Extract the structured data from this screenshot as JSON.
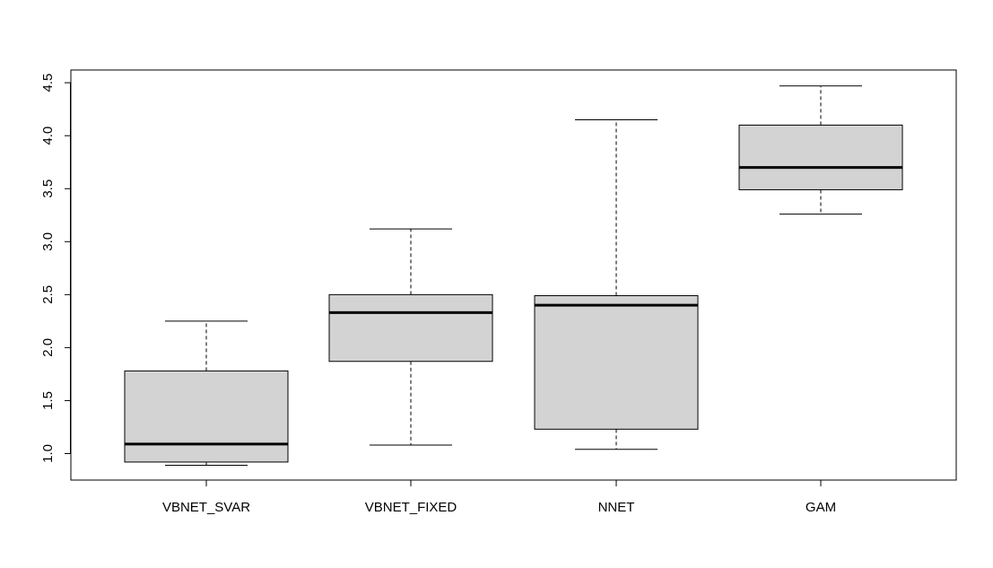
{
  "chart_data": {
    "type": "boxplot",
    "title": "",
    "xlabel": "",
    "ylabel": "",
    "ylim": [
      0.75,
      4.62
    ],
    "yticks": [
      1.0,
      1.5,
      2.0,
      2.5,
      3.0,
      3.5,
      4.0,
      4.5
    ],
    "ytick_labels": [
      "1.0",
      "1.5",
      "2.0",
      "2.5",
      "3.0",
      "3.5",
      "4.0",
      "4.5"
    ],
    "categories": [
      "VBNET_SVAR",
      "VBNET_FIXED",
      "NNET",
      "GAM"
    ],
    "boxes": [
      {
        "label": "VBNET_SVAR",
        "min": 0.89,
        "q1": 0.92,
        "median": 1.09,
        "q3": 1.78,
        "max": 2.25
      },
      {
        "label": "VBNET_FIXED",
        "min": 1.08,
        "q1": 1.87,
        "median": 2.33,
        "q3": 2.5,
        "max": 3.12
      },
      {
        "label": "NNET",
        "min": 1.04,
        "q1": 1.23,
        "median": 2.4,
        "q3": 2.49,
        "max": 4.15
      },
      {
        "label": "GAM",
        "min": 3.26,
        "q1": 3.49,
        "median": 3.7,
        "q3": 4.1,
        "max": 4.47
      }
    ],
    "box_fill": "#d3d3d3",
    "line_color": "#000000",
    "grid": false,
    "legend": "none"
  }
}
